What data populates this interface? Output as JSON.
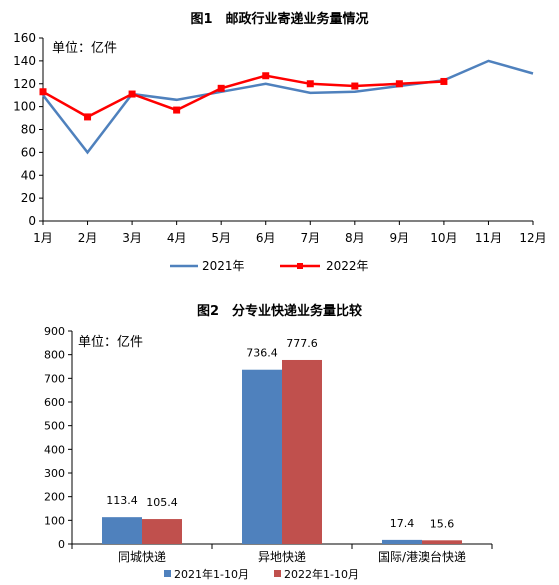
{
  "chart_data": [
    {
      "type": "line",
      "title": "图1　邮政行业寄递业务量情况",
      "unit_label": "单位：亿件",
      "categories": [
        "1月",
        "2月",
        "3月",
        "4月",
        "5月",
        "6月",
        "7月",
        "8月",
        "9月",
        "10月",
        "11月",
        "12月"
      ],
      "ylim": [
        0,
        160
      ],
      "yticks": [
        0,
        20,
        40,
        60,
        80,
        100,
        120,
        140,
        160
      ],
      "grid": false,
      "legend_position": "bottom",
      "series": [
        {
          "name": "2021年",
          "color": "#4f81bd",
          "values": [
            110,
            60,
            111,
            106,
            113,
            120,
            112,
            113,
            118,
            123,
            140,
            129
          ]
        },
        {
          "name": "2022年",
          "color": "#ff0000",
          "values": [
            113,
            91,
            111,
            97,
            116,
            127,
            120,
            118,
            120,
            122,
            null,
            null
          ]
        }
      ]
    },
    {
      "type": "bar",
      "title": "图2　分专业快递业务量比较",
      "unit_label": "单位：亿件",
      "categories": [
        "同城快递",
        "异地快递",
        "国际/港澳台快递"
      ],
      "ylim": [
        0,
        900
      ],
      "yticks": [
        0,
        100,
        200,
        300,
        400,
        500,
        600,
        700,
        800,
        900
      ],
      "grid": false,
      "legend_position": "bottom",
      "series": [
        {
          "name": "2021年1-10月",
          "color": "#4f81bd",
          "values": [
            113.4,
            736.4,
            17.4
          ],
          "labels": [
            "113.4",
            "736.4",
            "17.4"
          ]
        },
        {
          "name": "2022年1-10月",
          "color": "#c0504d",
          "values": [
            105.4,
            777.6,
            15.6
          ],
          "labels": [
            "105.4",
            "777.6",
            "15.6"
          ]
        }
      ]
    }
  ]
}
